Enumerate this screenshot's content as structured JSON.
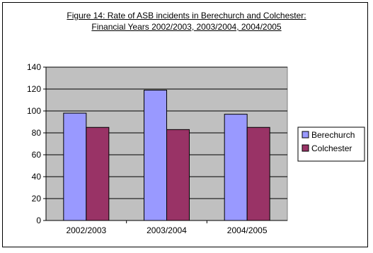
{
  "chart_data": {
    "type": "bar",
    "title_line1": "Figure 14:  Rate of ASB incidents in Berechurch and Colchester:",
    "title_line2": "Financial Years 2002/2003, 2003/2004, 2004/2005",
    "categories": [
      "2002/2003",
      "2003/2004",
      "2004/2005"
    ],
    "series": [
      {
        "name": "Berechurch",
        "values": [
          98,
          119,
          97
        ],
        "color": "#9999ff"
      },
      {
        "name": "Colchester",
        "values": [
          85,
          83,
          85
        ],
        "color": "#993366"
      }
    ],
    "ylim": [
      0,
      140
    ],
    "yticks": [
      0,
      20,
      40,
      60,
      80,
      100,
      120,
      140
    ],
    "plot_background": "#c0c0c0",
    "grid": true,
    "legend_position": "right"
  }
}
